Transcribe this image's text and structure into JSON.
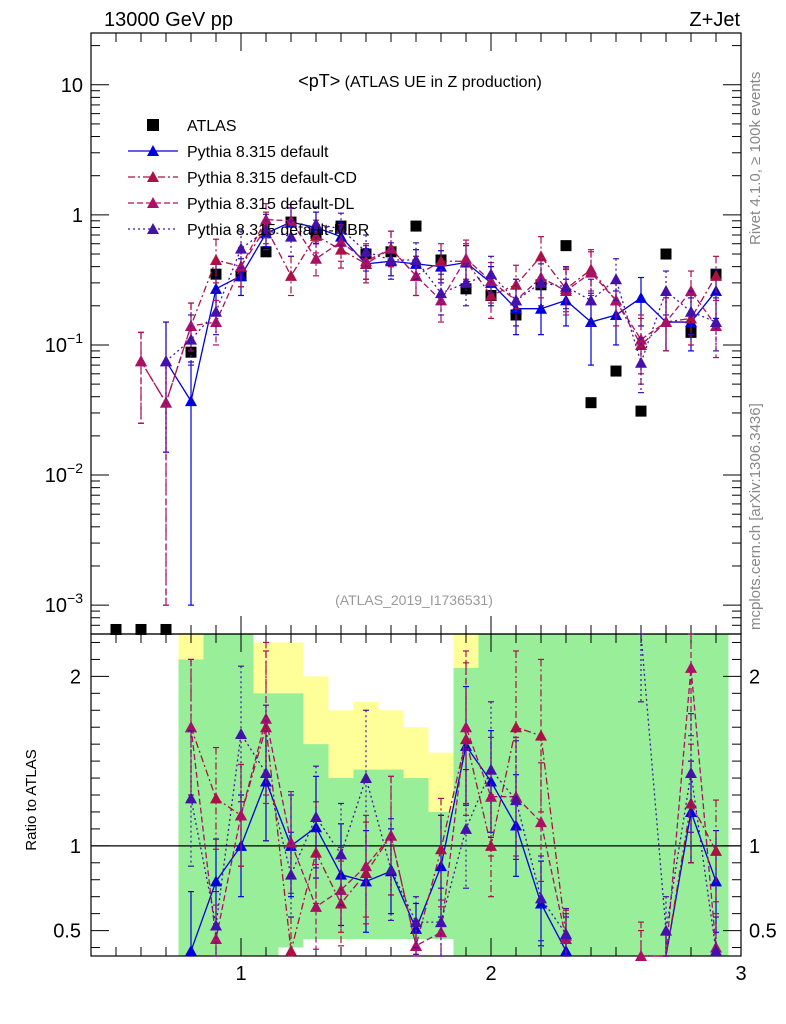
{
  "chart_data": {
    "type": "scatter",
    "header_left": "13000 GeV pp",
    "header_right": "Z+Jet",
    "title": "<pT>",
    "title_suffix": " (ATLAS UE in Z production)",
    "analysis_tag": "(ATLAS_2019_I1736531)",
    "side_label_top": "Rivet 4.1.0, ≥ 100k events",
    "side_label_bottom": "mcplots.cern.ch [arXiv:1306.3436]",
    "xlim": [
      0.4,
      3.0
    ],
    "x_ticks": [
      {
        "v": 1,
        "label": "1"
      },
      {
        "v": 2,
        "label": "2"
      },
      {
        "v": 3,
        "label": "3"
      }
    ],
    "main": {
      "yscale": "log",
      "ylim": [
        0.0006,
        25
      ],
      "y_ticks": [
        {
          "v": 10,
          "base": "10",
          "exp": ""
        },
        {
          "v": 1,
          "base": "1",
          "exp": ""
        },
        {
          "v": 0.1,
          "base": "10",
          "exp": "−1"
        },
        {
          "v": 0.01,
          "base": "10",
          "exp": "−2"
        },
        {
          "v": 0.001,
          "base": "10",
          "exp": "−3"
        }
      ]
    },
    "ratio": {
      "ylabel": "Ratio to ATLAS",
      "ylim": [
        0.35,
        2.25
      ],
      "y_ticks": [
        {
          "v": 0.5,
          "label": "0.5"
        },
        {
          "v": 1,
          "label": "1"
        },
        {
          "v": 2,
          "label": "2"
        }
      ],
      "band_bins": [
        0.75,
        0.85,
        0.95,
        1.05,
        1.15,
        1.25,
        1.35,
        1.45,
        1.55,
        1.65,
        1.75,
        1.85,
        1.95,
        2.05,
        2.15,
        2.25,
        2.35,
        2.45,
        2.55,
        2.65,
        2.75,
        2.85,
        2.95
      ],
      "band_green_lo": [
        0.35,
        0.35,
        0.35,
        0.35,
        0.4,
        0.45,
        0.45,
        0.45,
        0.45,
        0.45,
        0.45,
        0.35,
        0.35,
        0.35,
        0.35,
        0.35,
        0.35,
        0.35,
        0.35,
        0.35,
        0.35,
        0.35
      ],
      "band_green_hi": [
        2.1,
        2.25,
        2.25,
        1.9,
        1.9,
        1.6,
        1.4,
        1.45,
        1.45,
        1.4,
        1.2,
        2.05,
        2.25,
        2.25,
        2.25,
        2.25,
        2.25,
        2.25,
        2.25,
        2.25,
        2.25,
        2.25
      ],
      "band_yellow_lo": [
        0.35,
        0.35,
        0.35,
        0.35,
        0.4,
        0.6,
        0.6,
        0.65,
        0.6,
        0.6,
        0.45,
        0.35,
        0.35,
        0.35,
        0.35,
        0.35,
        0.35,
        0.35,
        0.35,
        0.35,
        0.35,
        0.35
      ],
      "band_yellow_hi": [
        2.25,
        2.25,
        2.25,
        2.2,
        2.2,
        2.0,
        1.8,
        1.85,
        1.8,
        1.7,
        1.55,
        2.25,
        2.25,
        2.25,
        2.25,
        2.25,
        2.25,
        2.25,
        2.25,
        2.25,
        2.25,
        2.25
      ]
    },
    "legend_position": "top-left",
    "series": [
      {
        "name": "ATLAS",
        "color": "#000000",
        "style": "data",
        "x": [
          0.5,
          0.6,
          0.7,
          0.8,
          0.9,
          1.0,
          1.1,
          1.2,
          1.3,
          1.4,
          1.5,
          1.6,
          1.7,
          1.8,
          1.9,
          2.0,
          2.1,
          2.2,
          2.3,
          2.4,
          2.5,
          2.6,
          2.7,
          2.8,
          2.9
        ],
        "y": [
          0.00065,
          0.00065,
          0.00065,
          0.088,
          0.35,
          0.34,
          0.52,
          0.88,
          0.72,
          0.82,
          0.5,
          0.52,
          0.82,
          0.45,
          0.27,
          0.24,
          0.17,
          0.29,
          0.58,
          0.036,
          0.063,
          0.031,
          0.5,
          0.125,
          0.35
        ]
      },
      {
        "name": "Pythia 8.315 default",
        "color": "#0000dd",
        "style": "solid",
        "x": [
          0.7,
          0.8,
          0.9,
          1.0,
          1.1,
          1.2,
          1.3,
          1.4,
          1.5,
          1.6,
          1.7,
          1.8,
          1.9,
          2.0,
          2.1,
          2.2,
          2.3,
          2.4,
          2.5,
          2.6,
          2.7,
          2.8,
          2.9
        ],
        "y": [
          0.075,
          0.037,
          0.27,
          0.34,
          0.72,
          0.88,
          0.8,
          0.68,
          0.42,
          0.44,
          0.42,
          0.4,
          0.43,
          0.3,
          0.19,
          0.19,
          0.22,
          0.15,
          0.17,
          0.23,
          0.15,
          0.15,
          0.26
        ],
        "err": [
          [
            0.06,
            0.075
          ],
          [
            0.036,
            0.037
          ],
          [
            0.1,
            0.15
          ],
          [
            0.1,
            0.12
          ],
          [
            0.15,
            0.2
          ],
          [
            0.2,
            0.25
          ],
          [
            0.2,
            0.25
          ],
          [
            0.15,
            0.2
          ],
          [
            0.1,
            0.13
          ],
          [
            0.1,
            0.12
          ],
          [
            0.1,
            0.12
          ],
          [
            0.1,
            0.13
          ],
          [
            0.12,
            0.15
          ],
          [
            0.1,
            0.1
          ],
          [
            0.07,
            0.09
          ],
          [
            0.07,
            0.09
          ],
          [
            0.08,
            0.1
          ],
          [
            0.08,
            0.1
          ],
          [
            0.07,
            0.09
          ],
          [
            0.09,
            0.1
          ],
          [
            0.06,
            0.08
          ],
          [
            0.06,
            0.08
          ],
          [
            0.1,
            0.12
          ]
        ],
        "ratio": [
          null,
          0.38,
          0.79,
          1.0,
          1.38,
          1.0,
          1.11,
          0.83,
          0.79,
          0.85,
          0.51,
          0.88,
          1.59,
          1.38,
          1.12,
          0.66,
          0.38,
          null,
          null,
          null,
          0.3,
          1.2,
          0.79
        ],
        "ratio_err": [
          0,
          0.35,
          0.25,
          0.3,
          0.35,
          0.3,
          0.3,
          0.3,
          0.3,
          0.25,
          0.15,
          0.3,
          0.35,
          0.3,
          0.3,
          0.25,
          0.2,
          0,
          0,
          0,
          0.2,
          0.3,
          0.3
        ]
      },
      {
        "name": "Pythia 8.315 default-CD",
        "color": "#aa1144",
        "style": "dashdot",
        "x": [
          0.6,
          0.7,
          0.8,
          0.9,
          1.0,
          1.1,
          1.2,
          1.3,
          1.4,
          1.5,
          1.6,
          1.7,
          1.8,
          1.9,
          2.0,
          2.1,
          2.2,
          2.3,
          2.4,
          2.5,
          2.6,
          2.7,
          2.8,
          2.9
        ],
        "y": [
          0.075,
          0.036,
          0.14,
          0.45,
          0.4,
          0.8,
          0.34,
          0.69,
          0.54,
          0.42,
          0.55,
          0.34,
          0.44,
          0.44,
          0.24,
          0.29,
          0.48,
          0.27,
          0.38,
          0.22,
          0.1,
          0.15,
          0.16,
          0.34
        ],
        "err": [
          [
            0.05,
            0.05
          ],
          [
            0.035,
            0.036
          ],
          [
            0.05,
            0.07
          ],
          [
            0.15,
            0.2
          ],
          [
            0.12,
            0.16
          ],
          [
            0.2,
            0.25
          ],
          [
            0.1,
            0.14
          ],
          [
            0.18,
            0.22
          ],
          [
            0.15,
            0.2
          ],
          [
            0.12,
            0.16
          ],
          [
            0.15,
            0.2
          ],
          [
            0.1,
            0.14
          ],
          [
            0.12,
            0.16
          ],
          [
            0.13,
            0.16
          ],
          [
            0.08,
            0.1
          ],
          [
            0.1,
            0.12
          ],
          [
            0.15,
            0.2
          ],
          [
            0.09,
            0.12
          ],
          [
            0.12,
            0.16
          ],
          [
            0.08,
            0.1
          ],
          [
            0.05,
            0.06
          ],
          [
            0.06,
            0.08
          ],
          [
            0.06,
            0.08
          ],
          [
            0.1,
            0.14
          ]
        ],
        "ratio": [
          null,
          null,
          1.7,
          1.28,
          1.18,
          1.7,
          0.38,
          0.96,
          0.66,
          0.84,
          1.06,
          0.41,
          0.98,
          1.63,
          1.0,
          1.7,
          1.65,
          0.47,
          null,
          null,
          0.3,
          0.3,
          1.25,
          0.97
        ],
        "ratio_err": [
          0,
          0,
          0.4,
          0.3,
          0.3,
          0.45,
          0.2,
          0.3,
          0.25,
          0.3,
          0.35,
          0.15,
          0.3,
          0.45,
          0.3,
          0.45,
          0.45,
          0.15,
          0,
          0,
          0.2,
          0.2,
          0.35,
          0.3
        ]
      },
      {
        "name": "Pythia 8.315 default-DL",
        "color": "#aa1166",
        "style": "dashed",
        "x": [
          0.6,
          0.7,
          0.8,
          0.9,
          1.0,
          1.1,
          1.2,
          1.3,
          1.4,
          1.5,
          1.6,
          1.7,
          1.8,
          1.9,
          2.0,
          2.1,
          2.2,
          2.3,
          2.4,
          2.5,
          2.6,
          2.7,
          2.8,
          2.9
        ],
        "y": [
          0.075,
          0.036,
          0.14,
          0.15,
          0.4,
          0.92,
          0.9,
          0.46,
          0.62,
          0.44,
          0.55,
          0.34,
          0.22,
          0.46,
          0.31,
          0.22,
          0.33,
          0.26,
          0.36,
          0.22,
          0.11,
          0.15,
          0.26,
          0.14
        ],
        "err": [
          [
            0.05,
            0.05
          ],
          [
            0.035,
            0.036
          ],
          [
            0.05,
            0.07
          ],
          [
            0.05,
            0.07
          ],
          [
            0.12,
            0.16
          ],
          [
            0.25,
            0.3
          ],
          [
            0.25,
            0.3
          ],
          [
            0.12,
            0.16
          ],
          [
            0.18,
            0.22
          ],
          [
            0.12,
            0.16
          ],
          [
            0.15,
            0.2
          ],
          [
            0.1,
            0.14
          ],
          [
            0.07,
            0.1
          ],
          [
            0.14,
            0.18
          ],
          [
            0.1,
            0.12
          ],
          [
            0.08,
            0.1
          ],
          [
            0.1,
            0.14
          ],
          [
            0.09,
            0.12
          ],
          [
            0.12,
            0.16
          ],
          [
            0.08,
            0.1
          ],
          [
            0.05,
            0.06
          ],
          [
            0.06,
            0.08
          ],
          [
            0.09,
            0.11
          ],
          [
            0.06,
            0.08
          ]
        ],
        "ratio": [
          null,
          null,
          1.7,
          0.45,
          1.18,
          1.75,
          1.02,
          0.64,
          0.74,
          0.88,
          1.06,
          0.41,
          0.49,
          1.7,
          1.29,
          1.29,
          1.14,
          0.45,
          null,
          null,
          0.35,
          0.3,
          2.05,
          0.4
        ],
        "ratio_err": [
          0,
          0,
          0.4,
          0.2,
          0.3,
          0.45,
          0.3,
          0.25,
          0.25,
          0.3,
          0.35,
          0.15,
          0.15,
          0.45,
          0.35,
          0.35,
          0.35,
          0.15,
          0,
          0,
          0.2,
          0.2,
          0.4,
          0.2
        ]
      },
      {
        "name": "Pythia 8.315 default-MBR",
        "color": "#4411aa",
        "style": "dotted",
        "x": [
          0.7,
          0.8,
          0.9,
          1.0,
          1.1,
          1.2,
          1.3,
          1.4,
          1.5,
          1.6,
          1.7,
          1.8,
          1.9,
          2.0,
          2.1,
          2.2,
          2.3,
          2.4,
          2.5,
          2.6,
          2.7,
          2.8,
          2.9
        ],
        "y": [
          0.075,
          0.11,
          0.18,
          0.55,
          0.76,
          0.68,
          0.85,
          0.78,
          0.52,
          0.45,
          0.45,
          0.25,
          0.3,
          0.35,
          0.22,
          0.3,
          0.28,
          0.22,
          0.32,
          0.073,
          0.26,
          0.18,
          0.15
        ],
        "err": [
          [
            0.06,
            0.075
          ],
          [
            0.04,
            0.06
          ],
          [
            0.06,
            0.08
          ],
          [
            0.16,
            0.2
          ],
          [
            0.22,
            0.25
          ],
          [
            0.2,
            0.22
          ],
          [
            0.25,
            0.3
          ],
          [
            0.2,
            0.25
          ],
          [
            0.15,
            0.18
          ],
          [
            0.13,
            0.16
          ],
          [
            0.13,
            0.16
          ],
          [
            0.08,
            0.1
          ],
          [
            0.1,
            0.12
          ],
          [
            0.1,
            0.13
          ],
          [
            0.08,
            0.1
          ],
          [
            0.1,
            0.12
          ],
          [
            0.09,
            0.12
          ],
          [
            0.08,
            0.1
          ],
          [
            0.1,
            0.14
          ],
          [
            0.03,
            0.04
          ],
          [
            0.09,
            0.11
          ],
          [
            0.06,
            0.08
          ],
          [
            0.06,
            0.08
          ]
        ],
        "ratio": [
          null,
          1.28,
          0.53,
          1.66,
          1.43,
          0.83,
          1.17,
          0.95,
          1.4,
          0.86,
          0.55,
          0.55,
          1.1,
          1.45,
          1.27,
          0.69,
          0.48,
          null,
          null,
          2.35,
          0.5,
          1.43,
          0.38
        ],
        "ratio_err": [
          0,
          0.4,
          0.2,
          0.4,
          0.4,
          0.25,
          0.3,
          0.3,
          0.4,
          0.3,
          0.15,
          0.2,
          0.35,
          0.4,
          0.35,
          0.25,
          0.15,
          0,
          0,
          0.5,
          0.2,
          0.35,
          0.2
        ]
      }
    ]
  }
}
